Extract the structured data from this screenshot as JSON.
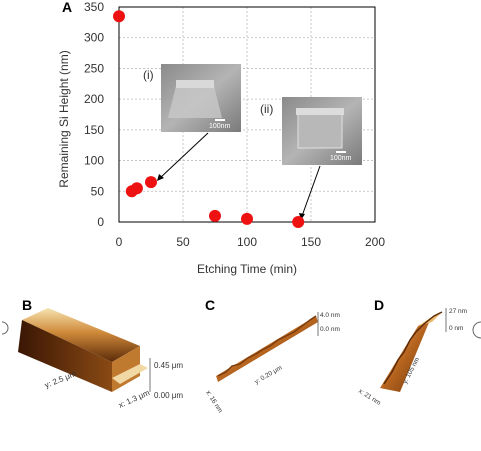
{
  "chart_data": {
    "type": "scatter",
    "panel_label": "A",
    "xlabel": "Etching Time (min)",
    "ylabel": "Remaining Si Height (nm)",
    "xlim": [
      0,
      200
    ],
    "ylim": [
      0,
      350
    ],
    "xticks": [
      0,
      50,
      100,
      150,
      200
    ],
    "yticks": [
      0,
      50,
      100,
      150,
      200,
      250,
      300,
      350
    ],
    "grid": true,
    "marker_color": "#ee1111",
    "points": [
      {
        "x": 0,
        "y": 335
      },
      {
        "x": 10,
        "y": 50
      },
      {
        "x": 14,
        "y": 55
      },
      {
        "x": 25,
        "y": 65
      },
      {
        "x": 75,
        "y": 10
      },
      {
        "x": 100,
        "y": 5
      },
      {
        "x": 140,
        "y": 0
      }
    ],
    "insets": [
      {
        "label": "(i)",
        "scale_bar": "100nm"
      },
      {
        "label": "(ii)",
        "scale_bar": "100nm"
      }
    ]
  },
  "panels": {
    "B": {
      "letter": "B",
      "y_axis": "y: 2.5 μm",
      "x_axis": "x: 1.3 μm",
      "z_top": "0.45 μm",
      "z_bottom": "0.00 μm"
    },
    "C": {
      "letter": "C",
      "y_axis": "y: 0.20 μm",
      "x_axis": "x: 16 nm",
      "z_top": "4.0 nm",
      "z_bottom": "0.0 nm"
    },
    "D": {
      "letter": "D",
      "y_axis": "y: 105 nm",
      "x_axis": "x: 21 nm",
      "z_top": "27 nm",
      "z_bottom": "0 nm"
    }
  }
}
